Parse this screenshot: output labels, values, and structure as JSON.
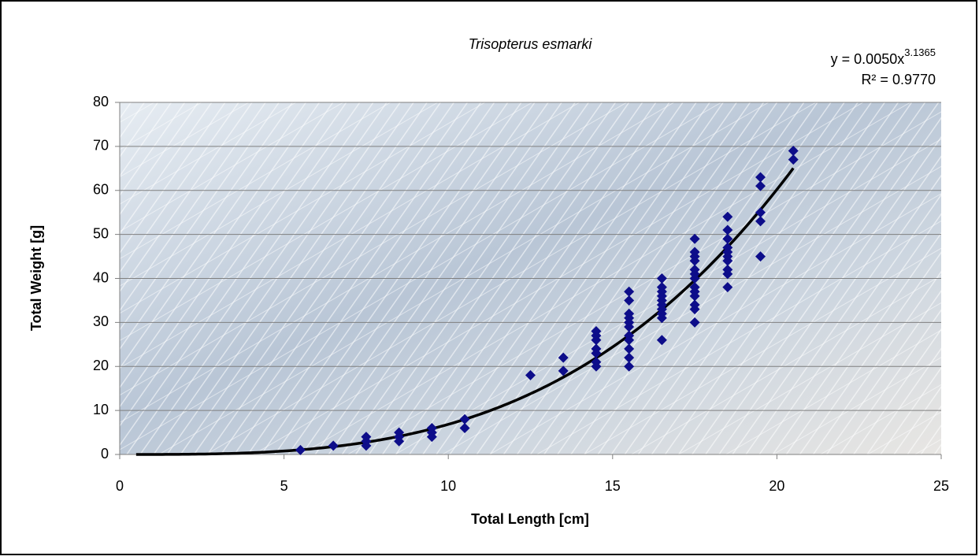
{
  "chart_data": {
    "type": "scatter",
    "title": "Trisopterus esmarki",
    "x_label": "Total Length [cm]",
    "y_label": "Total Weight [g]",
    "equation": "y = 0.0050x",
    "equation_exponent": "3.1365",
    "r_squared_label": "R² = 0.9770",
    "trendline": {
      "type": "power",
      "coefficient": 0.005,
      "exponent": 3.1365,
      "xrange": [
        0.5,
        20.5
      ],
      "color": "#000000"
    },
    "color": "#0d0d8a",
    "xlim": [
      0,
      25
    ],
    "xticks": [
      0,
      5,
      10,
      15,
      20,
      25
    ],
    "ylim": [
      0,
      80
    ],
    "yticks": [
      0,
      10,
      20,
      30,
      40,
      50,
      60,
      70,
      80
    ],
    "grid": true,
    "x": [
      5.5,
      6.5,
      7.5,
      7.5,
      7.5,
      8.5,
      8.5,
      8.5,
      9.5,
      9.5,
      9.5,
      10.5,
      10.5,
      12.5,
      13.5,
      13.5,
      14.5,
      14.5,
      14.5,
      14.5,
      14.5,
      14.5,
      14.5,
      15.5,
      15.5,
      15.5,
      15.5,
      15.5,
      15.5,
      15.5,
      15.5,
      15.5,
      15.5,
      15.5,
      16.5,
      16.5,
      16.5,
      16.5,
      16.5,
      16.5,
      16.5,
      16.5,
      16.5,
      16.5,
      17.5,
      17.5,
      17.5,
      17.5,
      17.5,
      17.5,
      17.5,
      17.5,
      17.5,
      17.5,
      17.5,
      17.5,
      17.5,
      18.5,
      18.5,
      18.5,
      18.5,
      18.5,
      18.5,
      18.5,
      18.5,
      18.5,
      18.5,
      19.5,
      19.5,
      19.5,
      19.5,
      19.5,
      20.5,
      20.5
    ],
    "values": [
      1,
      2,
      2,
      3,
      4,
      3,
      4,
      5,
      4,
      5,
      6,
      6,
      8,
      18,
      19,
      22,
      20,
      21,
      23,
      24,
      26,
      27,
      28,
      20,
      22,
      24,
      26,
      27,
      29,
      30,
      31,
      32,
      35,
      37,
      26,
      31,
      32,
      33,
      34,
      35,
      36,
      37,
      38,
      40,
      30,
      33,
      34,
      36,
      37,
      38,
      40,
      41,
      42,
      44,
      45,
      46,
      49,
      38,
      41,
      42,
      44,
      45,
      46,
      47,
      49,
      51,
      54,
      45,
      53,
      55,
      61,
      63,
      67,
      69
    ]
  }
}
